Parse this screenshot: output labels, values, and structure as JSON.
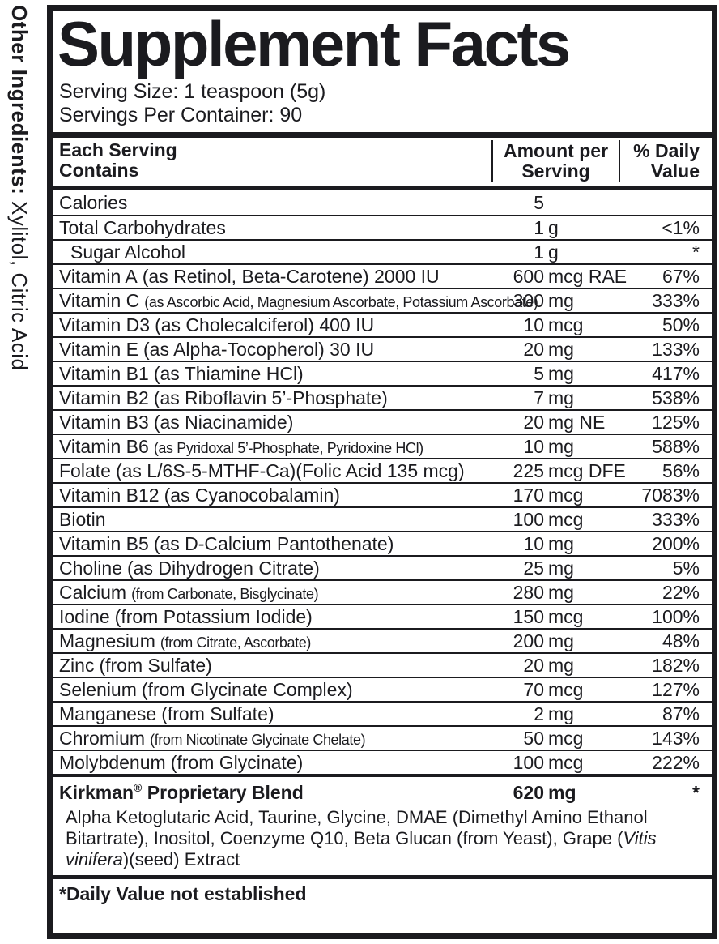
{
  "colors": {
    "text": "#1b1b1f",
    "background": "#ffffff"
  },
  "sidebar": {
    "other_ingredients_label": "Other Ingredients:",
    "other_ingredients_value": " Xylitol, Citric Acid"
  },
  "header": {
    "title": "Supplement Facts",
    "serving_size": "Serving Size: 1 teaspoon (5g)",
    "servings_per_container": "Servings Per Container: 90"
  },
  "table": {
    "columns": {
      "col1_line1": "Each Serving",
      "col1_line2": "Contains",
      "col2_line1": "Amount per",
      "col2_line2": "Serving",
      "col3_line1": "% Daily",
      "col3_line2": "Value"
    },
    "rows": [
      {
        "name": "Calories",
        "detail": "",
        "detail_small": false,
        "indent": false,
        "amount_num": "5",
        "amount_unit": "",
        "dv": ""
      },
      {
        "name": "Total Carbohydrates",
        "detail": "",
        "detail_small": false,
        "indent": false,
        "amount_num": "1",
        "amount_unit": "g",
        "dv": "<1%"
      },
      {
        "name": "Sugar Alcohol",
        "detail": "",
        "detail_small": false,
        "indent": true,
        "amount_num": "1",
        "amount_unit": "g",
        "dv": "*"
      },
      {
        "name": "Vitamin A",
        "detail": "(as Retinol, Beta-Carotene) 2000 IU",
        "detail_small": false,
        "indent": false,
        "amount_num": "600",
        "amount_unit": "mcg RAE",
        "dv": "67%"
      },
      {
        "name": "Vitamin C",
        "detail": "(as Ascorbic Acid, Magnesium Ascorbate, Potassium Ascorbate)",
        "detail_small": true,
        "indent": false,
        "amount_num": "300",
        "amount_unit": "mg",
        "dv": "333%"
      },
      {
        "name": "Vitamin D3",
        "detail": "(as Cholecalciferol) 400 IU",
        "detail_small": false,
        "indent": false,
        "amount_num": "10",
        "amount_unit": "mcg",
        "dv": "50%"
      },
      {
        "name": "Vitamin E",
        "detail": "(as Alpha-Tocopherol) 30 IU",
        "detail_small": false,
        "indent": false,
        "amount_num": "20",
        "amount_unit": "mg",
        "dv": "133%"
      },
      {
        "name": "Vitamin B1",
        "detail": "(as Thiamine HCl)",
        "detail_small": false,
        "indent": false,
        "amount_num": "5",
        "amount_unit": "mg",
        "dv": "417%"
      },
      {
        "name": "Vitamin B2",
        "detail": "(as Riboflavin 5’-Phosphate)",
        "detail_small": false,
        "indent": false,
        "amount_num": "7",
        "amount_unit": "mg",
        "dv": "538%"
      },
      {
        "name": "Vitamin B3",
        "detail": "(as Niacinamide)",
        "detail_small": false,
        "indent": false,
        "amount_num": "20",
        "amount_unit": "mg NE",
        "dv": "125%"
      },
      {
        "name": "Vitamin B6",
        "detail": "(as Pyridoxal 5’-Phosphate, Pyridoxine HCl)",
        "detail_small": true,
        "indent": false,
        "amount_num": "10",
        "amount_unit": "mg",
        "dv": "588%"
      },
      {
        "name": "Folate",
        "detail": "(as L/6S-5-MTHF-Ca)(Folic Acid 135 mcg)",
        "detail_small": false,
        "indent": false,
        "amount_num": "225",
        "amount_unit": "mcg DFE",
        "dv": "56%"
      },
      {
        "name": "Vitamin B12",
        "detail": "(as Cyanocobalamin)",
        "detail_small": false,
        "indent": false,
        "amount_num": "170",
        "amount_unit": "mcg",
        "dv": "7083%"
      },
      {
        "name": "Biotin",
        "detail": "",
        "detail_small": false,
        "indent": false,
        "amount_num": "100",
        "amount_unit": "mcg",
        "dv": "333%"
      },
      {
        "name": "Vitamin B5",
        "detail": "(as D-Calcium Pantothenate)",
        "detail_small": false,
        "indent": false,
        "amount_num": "10",
        "amount_unit": "mg",
        "dv": "200%"
      },
      {
        "name": "Choline",
        "detail": "(as Dihydrogen Citrate)",
        "detail_small": false,
        "indent": false,
        "amount_num": "25",
        "amount_unit": "mg",
        "dv": "5%"
      },
      {
        "name": "Calcium",
        "detail": "(from Carbonate, Bisglycinate)",
        "detail_small": true,
        "indent": false,
        "amount_num": "280",
        "amount_unit": "mg",
        "dv": "22%"
      },
      {
        "name": "Iodine",
        "detail": "(from Potassium Iodide)",
        "detail_small": false,
        "indent": false,
        "amount_num": "150",
        "amount_unit": "mcg",
        "dv": "100%"
      },
      {
        "name": "Magnesium",
        "detail": "(from Citrate, Ascorbate)",
        "detail_small": true,
        "indent": false,
        "amount_num": "200",
        "amount_unit": "mg",
        "dv": "48%"
      },
      {
        "name": "Zinc",
        "detail": "(from Sulfate)",
        "detail_small": false,
        "indent": false,
        "amount_num": "20",
        "amount_unit": "mg",
        "dv": "182%"
      },
      {
        "name": "Selenium",
        "detail": "(from Glycinate Complex)",
        "detail_small": false,
        "indent": false,
        "amount_num": "70",
        "amount_unit": "mcg",
        "dv": "127%"
      },
      {
        "name": "Manganese",
        "detail": "(from Sulfate)",
        "detail_small": false,
        "indent": false,
        "amount_num": "2",
        "amount_unit": "mg",
        "dv": "87%"
      },
      {
        "name": "Chromium",
        "detail": "(from Nicotinate Glycinate Chelate)",
        "detail_small": true,
        "indent": false,
        "amount_num": "50",
        "amount_unit": "mcg",
        "dv": "143%"
      },
      {
        "name": "Molybdenum",
        "detail": "(from Glycinate)",
        "detail_small": false,
        "indent": false,
        "amount_num": "100",
        "amount_unit": "mcg",
        "dv": "222%"
      }
    ]
  },
  "blend": {
    "brand": "Kirkman",
    "reg": "®",
    "title_rest": " Proprietary Blend",
    "amount_num": "620",
    "amount_unit": "mg",
    "dv": "*",
    "ingredients_parts": [
      {
        "text": "Alpha Ketoglutaric Acid, Taurine, Glycine, DMAE (Dimethyl Amino Ethanol Bitartrate), Inositol, Coenzyme Q10, Beta Glucan (from Yeast), Grape (",
        "italic": false
      },
      {
        "text": "Vitis vinifera",
        "italic": true
      },
      {
        "text": ")(seed) Extract",
        "italic": false
      }
    ]
  },
  "footnote": "*Daily Value not established"
}
